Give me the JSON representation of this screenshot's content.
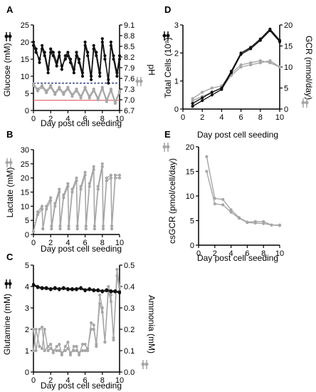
{
  "panels": {
    "A": {
      "letter": "A",
      "xlabel": "Day post cell seeding",
      "ylabel_left": "Glucose (mM)",
      "ylabel_right": "pH",
      "x_ticks": [
        "0",
        "2",
        "4",
        "6",
        "8",
        "10"
      ],
      "y_left_ticks": [
        "0",
        "5",
        "10",
        "15",
        "20",
        "25"
      ],
      "y_right_ticks": [
        "6.7",
        "7.0",
        "7.3",
        "7.6",
        "7.9",
        "8.2",
        "8.5",
        "8.8",
        "9.1"
      ]
    },
    "B": {
      "letter": "B",
      "xlabel": "Day post cell seeding",
      "ylabel": "Lactate (mM)",
      "x_ticks": [
        "0",
        "2",
        "4",
        "6",
        "8",
        "10"
      ],
      "y_ticks": [
        "0",
        "5",
        "10",
        "15",
        "20",
        "25",
        "30"
      ]
    },
    "C": {
      "letter": "C",
      "xlabel": "Day post cell seeding",
      "ylabel_left": "Glutamine (mM)",
      "ylabel_right": "Ammonia (mM)",
      "x_ticks": [
        "0",
        "2",
        "4",
        "6",
        "8",
        "10"
      ],
      "y_left_ticks": [
        "0",
        "1",
        "2",
        "3",
        "4",
        "5"
      ],
      "y_right_ticks": [
        "0.0",
        "0.1",
        "0.2",
        "0.3",
        "0.4",
        "0.5"
      ]
    },
    "D": {
      "letter": "D",
      "xlabel": "Day post cell seeding",
      "ylabel_left": "Total Cells (10⁹)",
      "ylabel_right": "GCR (mmol/day)",
      "x_ticks": [
        "0",
        "2",
        "4",
        "6",
        "8",
        "10"
      ],
      "y_left_ticks": [
        "0",
        "1",
        "2",
        "3"
      ],
      "y_right_ticks": [
        "0",
        "5",
        "10",
        "15",
        "20"
      ]
    },
    "E": {
      "letter": "E",
      "xlabel": "Day post cell seeding",
      "ylabel": "csGCR (pmol/cell/day)",
      "x_ticks": [
        "0",
        "2",
        "4",
        "6",
        "8",
        "10"
      ],
      "y_ticks": [
        "0",
        "5",
        "10",
        "15",
        "20"
      ]
    }
  },
  "colors": {
    "black": "#111111",
    "grey": "#a6a6a6",
    "navy": "#1f2d7a",
    "red": "#e07070"
  },
  "chart_data": [
    {
      "panel": "A",
      "type": "line",
      "xlim": [
        0,
        10
      ],
      "ylim_left": [
        0,
        25
      ],
      "ylim_right": [
        6.7,
        9.1
      ],
      "series": [
        {
          "axis": "left",
          "color": "black",
          "x": [
            0,
            0.3,
            0.7,
            1,
            1.3,
            1.7,
            2,
            2.3,
            2.7,
            3,
            3.3,
            3.7,
            4,
            4.3,
            4.7,
            5,
            5.3,
            5.7,
            6,
            6.3,
            6.7,
            7,
            7.3,
            7.7,
            8,
            8.3,
            8.7,
            9,
            9.3,
            9.7,
            10
          ],
          "y": [
            20,
            18,
            14,
            19,
            17,
            12,
            18,
            17,
            14,
            17,
            12,
            16,
            17,
            15,
            12,
            17,
            15,
            11,
            20,
            17,
            10,
            19,
            17,
            11,
            21,
            16,
            8,
            20,
            16,
            11,
            16
          ]
        },
        {
          "axis": "left",
          "color": "black",
          "x": [
            0,
            0.3,
            0.7,
            1,
            1.3,
            1.7,
            2,
            2.3,
            2.7,
            3,
            3.3,
            3.7,
            4,
            4.3,
            4.7,
            5,
            5.3,
            5.7,
            6,
            6.3,
            6.7,
            7,
            7.3,
            7.7,
            8,
            8.3,
            8.7,
            9,
            9.3,
            9.7,
            10
          ],
          "y": [
            19,
            17,
            15,
            18,
            16,
            11,
            17,
            16,
            13,
            16,
            13,
            15,
            16,
            14,
            11,
            16,
            14,
            10,
            19,
            16,
            9,
            18,
            16,
            10,
            20,
            15,
            9,
            19,
            15,
            10,
            15
          ]
        },
        {
          "axis": "right",
          "color": "grey",
          "x": [
            0,
            0.5,
            1,
            1.5,
            2,
            2.5,
            3,
            3.5,
            4,
            4.5,
            5,
            5.5,
            6,
            6.5,
            7,
            7.5,
            8,
            8.5,
            9,
            9.5,
            10
          ],
          "y": [
            7.45,
            7.3,
            7.4,
            7.25,
            7.4,
            7.2,
            7.35,
            7.2,
            7.35,
            7.15,
            7.3,
            7.1,
            7.35,
            7.1,
            7.3,
            7.05,
            7.35,
            7.0,
            7.3,
            6.95,
            7.25
          ]
        },
        {
          "axis": "right",
          "color": "grey",
          "x": [
            0,
            0.5,
            1,
            1.5,
            2,
            2.5,
            3,
            3.5,
            4,
            4.5,
            5,
            5.5,
            6,
            6.5,
            7,
            7.5,
            8,
            8.5,
            9,
            9.5,
            10
          ],
          "y": [
            7.4,
            7.25,
            7.35,
            7.2,
            7.35,
            7.15,
            7.3,
            7.15,
            7.3,
            7.1,
            7.25,
            7.05,
            7.3,
            7.05,
            7.25,
            7.0,
            7.3,
            6.95,
            7.25,
            6.9,
            7.2
          ]
        }
      ],
      "hlines": [
        {
          "axis": "left",
          "value": 8,
          "color": "navy",
          "style": "dashed"
        },
        {
          "axis": "left",
          "value": 3,
          "color": "red",
          "style": "solid"
        }
      ]
    },
    {
      "panel": "B",
      "type": "line",
      "xlim": [
        0,
        10
      ],
      "ylim": [
        0,
        30
      ],
      "series": [
        {
          "color": "grey",
          "x": [
            0,
            0.5,
            1,
            1.1,
            1.5,
            2,
            2.1,
            2.5,
            3,
            3.1,
            3.5,
            4,
            4.1,
            4.5,
            5,
            5.1,
            5.5,
            6,
            6.1,
            6.5,
            7,
            7.1,
            7.5,
            8,
            8.1,
            8.5,
            9,
            9.1,
            9.5,
            10
          ],
          "y": [
            1,
            8,
            10,
            2,
            10,
            13,
            3,
            11,
            16,
            3,
            14,
            18,
            3,
            16,
            20,
            3,
            17,
            22,
            3,
            18,
            24,
            3,
            17,
            25,
            3,
            20,
            21,
            3,
            21,
            21
          ]
        },
        {
          "color": "grey",
          "x": [
            0,
            0.5,
            1,
            1.1,
            1.5,
            2,
            2.1,
            2.5,
            3,
            3.1,
            3.5,
            4,
            4.1,
            4.5,
            5,
            5.1,
            5.5,
            6,
            6.1,
            6.5,
            7,
            7.1,
            7.5,
            8,
            8.1,
            8.5,
            9,
            9.1,
            9.5,
            10
          ],
          "y": [
            1,
            7,
            9,
            2,
            9,
            12,
            2,
            10,
            15,
            2,
            13,
            17,
            2,
            15,
            19,
            2,
            16,
            21,
            2,
            17,
            23,
            2,
            16,
            24,
            2,
            19,
            20,
            2,
            20,
            20
          ]
        }
      ]
    },
    {
      "panel": "C",
      "type": "line",
      "xlim": [
        0,
        10
      ],
      "ylim_left": [
        0,
        5
      ],
      "ylim_right": [
        0,
        0.5
      ],
      "series": [
        {
          "axis": "left",
          "color": "black",
          "x": [
            0,
            0.5,
            1,
            1.5,
            2,
            2.5,
            3,
            3.5,
            4,
            4.5,
            5,
            5.5,
            6,
            6.5,
            7,
            7.5,
            8,
            8.5,
            9,
            9.5,
            10
          ],
          "y": [
            4.1,
            4.0,
            3.95,
            3.95,
            3.9,
            3.95,
            3.9,
            3.95,
            3.9,
            3.9,
            3.9,
            3.95,
            3.85,
            3.9,
            3.85,
            3.85,
            3.8,
            3.85,
            3.8,
            3.8,
            3.75
          ]
        },
        {
          "axis": "left",
          "color": "black",
          "x": [
            0,
            0.5,
            1,
            1.5,
            2,
            2.5,
            3,
            3.5,
            4,
            4.5,
            5,
            5.5,
            6,
            6.5,
            7,
            7.5,
            8,
            8.5,
            9,
            9.5,
            10
          ],
          "y": [
            4.05,
            3.95,
            3.9,
            3.9,
            3.85,
            3.9,
            3.85,
            3.9,
            3.85,
            3.85,
            3.85,
            3.9,
            3.8,
            3.85,
            3.8,
            3.8,
            3.75,
            3.8,
            3.75,
            3.75,
            3.7
          ]
        },
        {
          "axis": "right",
          "color": "grey",
          "x": [
            0,
            0.3,
            0.7,
            1,
            1.3,
            1.7,
            2,
            2.3,
            2.7,
            3,
            3.3,
            3.7,
            4,
            4.3,
            4.7,
            5,
            5.3,
            5.7,
            6,
            6.3,
            6.7,
            7,
            7.3,
            7.7,
            8,
            8.3,
            8.7,
            9,
            9.3,
            9.7,
            10
          ],
          "y": [
            0.2,
            0.1,
            0.2,
            0.21,
            0.1,
            0.12,
            0.13,
            0.09,
            0.12,
            0.13,
            0.08,
            0.12,
            0.14,
            0.08,
            0.12,
            0.12,
            0.08,
            0.13,
            0.13,
            0.1,
            0.23,
            0.22,
            0.12,
            0.36,
            0.3,
            0.14,
            0.4,
            0.36,
            0.15,
            0.48,
            0.4
          ]
        },
        {
          "axis": "right",
          "color": "grey",
          "x": [
            0,
            0.3,
            0.7,
            1,
            1.3,
            1.7,
            2,
            2.3,
            2.7,
            3,
            3.3,
            3.7,
            4,
            4.3,
            4.7,
            5,
            5.3,
            5.7,
            6,
            6.3,
            6.7,
            7,
            7.3,
            7.7,
            8,
            8.3,
            8.7,
            9,
            9.3,
            9.7,
            10
          ],
          "y": [
            0.1,
            0.2,
            0.12,
            0.11,
            0.2,
            0.1,
            0.11,
            0.1,
            0.1,
            0.1,
            0.09,
            0.1,
            0.11,
            0.09,
            0.1,
            0.1,
            0.09,
            0.1,
            0.1,
            0.11,
            0.2,
            0.2,
            0.13,
            0.32,
            0.28,
            0.14,
            0.38,
            0.33,
            0.16,
            0.45,
            0.38
          ]
        }
      ]
    },
    {
      "panel": "D",
      "type": "line",
      "xlim": [
        0,
        10
      ],
      "ylim_left": [
        0,
        3
      ],
      "ylim_right": [
        0,
        20
      ],
      "series": [
        {
          "axis": "left",
          "color": "black",
          "x": [
            1,
            2,
            3,
            4,
            5,
            6,
            7,
            8,
            9,
            10
          ],
          "y": [
            0.1,
            0.3,
            0.5,
            0.7,
            1.3,
            1.95,
            2.15,
            2.45,
            2.8,
            2.4
          ]
        },
        {
          "axis": "left",
          "color": "black",
          "x": [
            1,
            2,
            3,
            4,
            5,
            6,
            7,
            8,
            9,
            10
          ],
          "y": [
            0.2,
            0.4,
            0.6,
            0.75,
            1.35,
            2.0,
            2.2,
            2.5,
            2.85,
            2.45
          ]
        },
        {
          "axis": "right",
          "color": "grey",
          "x": [
            1,
            2,
            3,
            4,
            5,
            6,
            7,
            8,
            9,
            10
          ],
          "y": [
            2,
            3,
            4,
            5,
            8,
            10,
            10.5,
            11,
            11.5,
            10
          ]
        },
        {
          "axis": "right",
          "color": "grey",
          "x": [
            1,
            2,
            3,
            4,
            5,
            6,
            7,
            8,
            9,
            10
          ],
          "y": [
            2.5,
            4,
            5,
            5.5,
            8.5,
            10.5,
            11,
            11.5,
            11,
            10
          ]
        }
      ]
    },
    {
      "panel": "E",
      "type": "line",
      "xlim": [
        0,
        10
      ],
      "ylim": [
        0,
        20
      ],
      "series": [
        {
          "color": "grey",
          "x": [
            1,
            2,
            3,
            4,
            5,
            6,
            7,
            8,
            9,
            10
          ],
          "y": [
            18,
            9.5,
            9.3,
            7.2,
            5.6,
            4.7,
            4.8,
            4.8,
            4.1,
            4.1
          ]
        },
        {
          "color": "grey",
          "x": [
            1,
            2,
            3,
            4,
            5,
            6,
            7,
            8,
            9,
            10
          ],
          "y": [
            15,
            8.4,
            8.2,
            6.7,
            5.5,
            4.6,
            4.5,
            4.4,
            4.1,
            4.0
          ]
        }
      ]
    }
  ]
}
